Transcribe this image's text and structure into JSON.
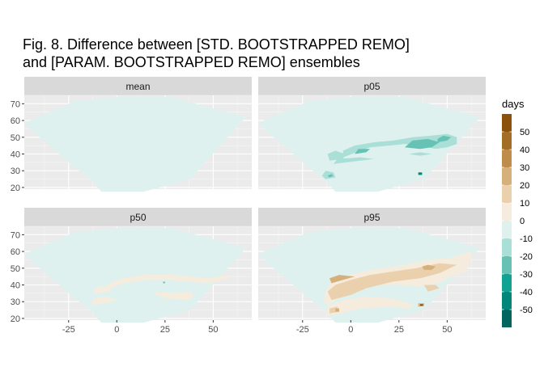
{
  "title_lines": [
    "Fig. 8. Difference between [STD. BOOTSTRAPPED REMO]",
    "and [PARAM. BOOTSTRAPPED REMO] ensembles"
  ],
  "chart_data": {
    "type": "heatmap",
    "title": "Fig. 8. Difference between [STD. BOOTSTRAPPED REMO] and [PARAM. BOOTSTRAPPED REMO] ensembles",
    "xlim": [
      -48,
      70
    ],
    "ylim": [
      19,
      75
    ],
    "x_ticks": [
      -25,
      0,
      25,
      50
    ],
    "y_ticks": [
      20,
      30,
      40,
      50,
      60,
      70
    ],
    "grid": true,
    "facets": [
      "mean",
      "p05",
      "p50",
      "p95"
    ],
    "domain_outline": [
      [
        -48,
        58.5
      ],
      [
        -22,
        71.5
      ],
      [
        0,
        74
      ],
      [
        28,
        74
      ],
      [
        67,
        62
      ],
      [
        38,
        25
      ],
      [
        14,
        17.5
      ],
      [
        -8,
        17.5
      ],
      [
        -13,
        24
      ],
      [
        -23,
        33
      ],
      [
        -35,
        45
      ],
      [
        -42,
        52
      ]
    ],
    "background_class": "0 to -10",
    "legend": {
      "title": "days",
      "position": "right",
      "labels": [
        "50",
        "40",
        "30",
        "20",
        "10",
        "0",
        "-10",
        "-20",
        "-30",
        "-40",
        "-50"
      ],
      "colors": [
        "#8c510a",
        "#a26e25",
        "#bf8d4a",
        "#d5b07a",
        "#ebd0ad",
        "#f6ecdd",
        "#dff1ee",
        "#a9dfd7",
        "#65c2b4",
        "#12a294",
        "#00867a",
        "#01665e"
      ]
    },
    "panels": [
      {
        "name": "mean",
        "patches": []
      },
      {
        "name": "p05",
        "patches": [
          {
            "color": "#a9dfd7",
            "points": [
              [
                -4,
                38
              ],
              [
                5,
                42
              ],
              [
                10,
                44
              ],
              [
                20,
                45
              ],
              [
                28,
                46
              ],
              [
                36,
                45
              ],
              [
                44,
                43
              ],
              [
                50,
                44
              ],
              [
                55,
                46
              ],
              [
                55,
                50
              ],
              [
                50,
                52
              ],
              [
                42,
                51
              ],
              [
                32,
                50
              ],
              [
                22,
                48
              ],
              [
                12,
                47
              ],
              [
                2,
                45
              ],
              [
                -4,
                42
              ]
            ]
          },
          {
            "color": "#65c2b4",
            "points": [
              [
                28,
                44
              ],
              [
                36,
                43
              ],
              [
                42,
                44
              ],
              [
                46,
                47
              ],
              [
                40,
                49
              ],
              [
                32,
                48
              ]
            ]
          },
          {
            "color": "#65c2b4",
            "points": [
              [
                2,
                40
              ],
              [
                8,
                41
              ],
              [
                10,
                43
              ],
              [
                4,
                43
              ]
            ]
          },
          {
            "color": "#a9dfd7",
            "points": [
              [
                -11,
                36
              ],
              [
                -4,
                37
              ],
              [
                -3,
                40
              ],
              [
                -8,
                42
              ],
              [
                -12,
                40
              ]
            ]
          },
          {
            "color": "#a9dfd7",
            "points": [
              [
                -9,
                34
              ],
              [
                5,
                36
              ],
              [
                12,
                37
              ],
              [
                5,
                38
              ],
              [
                -7,
                37
              ]
            ]
          },
          {
            "color": "#a9dfd7",
            "points": [
              [
                -13,
                25
              ],
              [
                -8,
                26
              ],
              [
                -9,
                29
              ],
              [
                -13,
                30
              ],
              [
                -15,
                27
              ]
            ]
          },
          {
            "color": "#65c2b4",
            "points": [
              [
                -11,
                26
              ],
              [
                -9,
                27
              ],
              [
                -10,
                28
              ],
              [
                -12,
                27
              ]
            ]
          },
          {
            "color": "#a9dfd7",
            "points": [
              [
                30,
                40
              ],
              [
                36,
                41
              ],
              [
                42,
                40
              ],
              [
                36,
                39
              ]
            ]
          },
          {
            "color": "#00867a",
            "points": [
              [
                35,
                27.5
              ],
              [
                37,
                27.5
              ],
              [
                37,
                29
              ],
              [
                35,
                29
              ]
            ]
          },
          {
            "color": "#65c2b4",
            "points": [
              [
                45,
                47
              ],
              [
                50,
                48
              ],
              [
                52,
                50
              ],
              [
                48,
                51
              ],
              [
                45,
                49
              ]
            ]
          }
        ]
      },
      {
        "name": "p50",
        "patches": [
          {
            "color": "#f6ecdd",
            "points": [
              [
                -5,
                37
              ],
              [
                3,
                41
              ],
              [
                15,
                43
              ],
              [
                28,
                43
              ],
              [
                38,
                42
              ],
              [
                48,
                41
              ],
              [
                58,
                44
              ],
              [
                58,
                46
              ],
              [
                48,
                44
              ],
              [
                38,
                45
              ],
              [
                28,
                46
              ],
              [
                15,
                46
              ],
              [
                3,
                44
              ],
              [
                -5,
                40
              ]
            ]
          },
          {
            "color": "#f6ecdd",
            "points": [
              [
                -11,
                35
              ],
              [
                -4,
                36
              ],
              [
                -3,
                39
              ],
              [
                -9,
                39
              ],
              [
                -12,
                37
              ]
            ]
          },
          {
            "color": "#f6ecdd",
            "points": [
              [
                -13,
                28
              ],
              [
                -6,
                29
              ],
              [
                0,
                31
              ],
              [
                -6,
                33
              ],
              [
                -12,
                32
              ]
            ]
          },
          {
            "color": "#f6ecdd",
            "points": [
              [
                20,
                36
              ],
              [
                28,
                35
              ],
              [
                38,
                36
              ],
              [
                40,
                33
              ],
              [
                36,
                31
              ],
              [
                26,
                32
              ],
              [
                20,
                34
              ]
            ]
          },
          {
            "color": "#65c2b4",
            "points": [
              [
                24,
                41
              ],
              [
                25,
                41
              ],
              [
                25,
                42
              ],
              [
                24,
                42
              ]
            ]
          }
        ]
      },
      {
        "name": "p95",
        "patches": [
          {
            "color": "#f6ecdd",
            "points": [
              [
                -12,
                28
              ],
              [
                -5,
                33
              ],
              [
                2,
                38
              ],
              [
                12,
                40
              ],
              [
                25,
                40
              ],
              [
                35,
                39
              ],
              [
                45,
                41
              ],
              [
                52,
                45
              ],
              [
                60,
                48
              ],
              [
                63,
                58
              ],
              [
                62,
                60
              ],
              [
                52,
                56
              ],
              [
                40,
                55
              ],
              [
                28,
                52
              ],
              [
                16,
                50
              ],
              [
                6,
                48
              ],
              [
                -4,
                45
              ],
              [
                -10,
                42
              ],
              [
                -13,
                36
              ],
              [
                -14,
                30
              ]
            ]
          },
          {
            "color": "#ebd0ad",
            "points": [
              [
                -10,
                31
              ],
              [
                0,
                34
              ],
              [
                8,
                38
              ],
              [
                22,
                42
              ],
              [
                36,
                44
              ],
              [
                46,
                47
              ],
              [
                55,
                52
              ],
              [
                46,
                53
              ],
              [
                34,
                50
              ],
              [
                22,
                48
              ],
              [
                10,
                46
              ],
              [
                0,
                43
              ],
              [
                -8,
                40
              ],
              [
                -12,
                36
              ]
            ]
          },
          {
            "color": "#f6ecdd",
            "points": [
              [
                -13,
                22
              ],
              [
                -5,
                23
              ],
              [
                5,
                26
              ],
              [
                20,
                27
              ],
              [
                30,
                26
              ],
              [
                33,
                28
              ],
              [
                22,
                32
              ],
              [
                8,
                33
              ],
              [
                -4,
                31
              ],
              [
                -12,
                27
              ]
            ]
          },
          {
            "color": "#ebd0ad",
            "points": [
              [
                -11,
                23
              ],
              [
                -6,
                24
              ],
              [
                -7,
                27
              ],
              [
                -11,
                26
              ]
            ]
          },
          {
            "color": "#ebd0ad",
            "points": [
              [
                38,
                40
              ],
              [
                44,
                40
              ],
              [
                46,
                38
              ],
              [
                40,
                36
              ]
            ]
          },
          {
            "color": "#d5b07a",
            "points": [
              [
                -10,
                41
              ],
              [
                -4,
                43
              ],
              [
                2,
                45
              ],
              [
                -6,
                46
              ],
              [
                -11,
                44
              ]
            ]
          },
          {
            "color": "#d5b07a",
            "points": [
              [
                38,
                49
              ],
              [
                42,
                49
              ],
              [
                44,
                51
              ],
              [
                40,
                52
              ],
              [
                37,
                51
              ]
            ]
          },
          {
            "color": "#d5b07a",
            "points": [
              [
                -8,
                24
              ],
              [
                -6,
                24
              ],
              [
                -6,
                26
              ],
              [
                -8,
                26
              ]
            ]
          },
          {
            "color": "#d5b07a",
            "points": [
              [
                35,
                27
              ],
              [
                38,
                27.5
              ],
              [
                38,
                29
              ],
              [
                35,
                29
              ]
            ]
          },
          {
            "color": "#8c510a",
            "points": [
              [
                36,
                27.5
              ],
              [
                37.5,
                27.5
              ],
              [
                37.5,
                28.5
              ],
              [
                36,
                28.5
              ]
            ]
          }
        ]
      }
    ]
  }
}
